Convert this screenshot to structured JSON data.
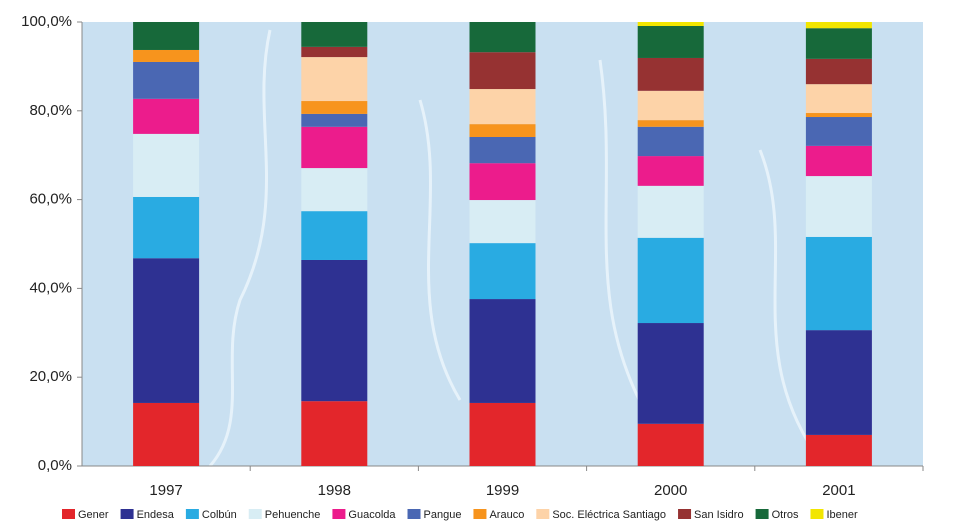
{
  "chart_data": {
    "type": "stacked_bar",
    "categories": [
      "1997",
      "1998",
      "1999",
      "2000",
      "2001"
    ],
    "series": [
      {
        "name": "Gener",
        "color": "#e3262b",
        "values": [
          14.2,
          14.6,
          14.2,
          9.5,
          7.0
        ]
      },
      {
        "name": "Endesa",
        "color": "#2e3192",
        "values": [
          32.6,
          31.8,
          23.4,
          22.7,
          23.6
        ]
      },
      {
        "name": "Colbún",
        "color": "#29abe2",
        "values": [
          13.8,
          11.0,
          12.6,
          19.2,
          21.0
        ]
      },
      {
        "name": "Pehuenche",
        "color": "#d8edf4",
        "values": [
          14.2,
          9.7,
          9.7,
          11.7,
          13.7
        ]
      },
      {
        "name": "Guacolda",
        "color": "#ec1c8c",
        "values": [
          7.9,
          9.3,
          8.3,
          6.7,
          6.8
        ]
      },
      {
        "name": "Pangue",
        "color": "#4a67b3",
        "values": [
          8.3,
          2.9,
          5.9,
          6.6,
          6.5
        ]
      },
      {
        "name": "Arauco",
        "color": "#f7941d",
        "values": [
          2.7,
          2.9,
          2.9,
          1.5,
          0.9
        ]
      },
      {
        "name": "Soc. Eléctrica Santiago",
        "color": "#fdd3a8",
        "values": [
          0,
          9.9,
          7.9,
          6.6,
          6.5
        ]
      },
      {
        "name": "San Isidro",
        "color": "#963232",
        "values": [
          0,
          2.3,
          8.3,
          7.4,
          5.7
        ]
      },
      {
        "name": "Otros",
        "color": "#17693a",
        "values": [
          6.3,
          5.6,
          6.8,
          7.2,
          6.9
        ]
      },
      {
        "name": "Ibener",
        "color": "#f2e600",
        "values": [
          0,
          0,
          0,
          0.9,
          1.4
        ]
      }
    ],
    "ylim": [
      0,
      100
    ],
    "yticks": [
      {
        "value": 0,
        "label": "0,0%"
      },
      {
        "value": 20,
        "label": "20,0%"
      },
      {
        "value": 40,
        "label": "40,0%"
      },
      {
        "value": 60,
        "label": "60,0%"
      },
      {
        "value": 80,
        "label": "80,0%"
      },
      {
        "value": 100,
        "label": "100,0%"
      }
    ]
  }
}
